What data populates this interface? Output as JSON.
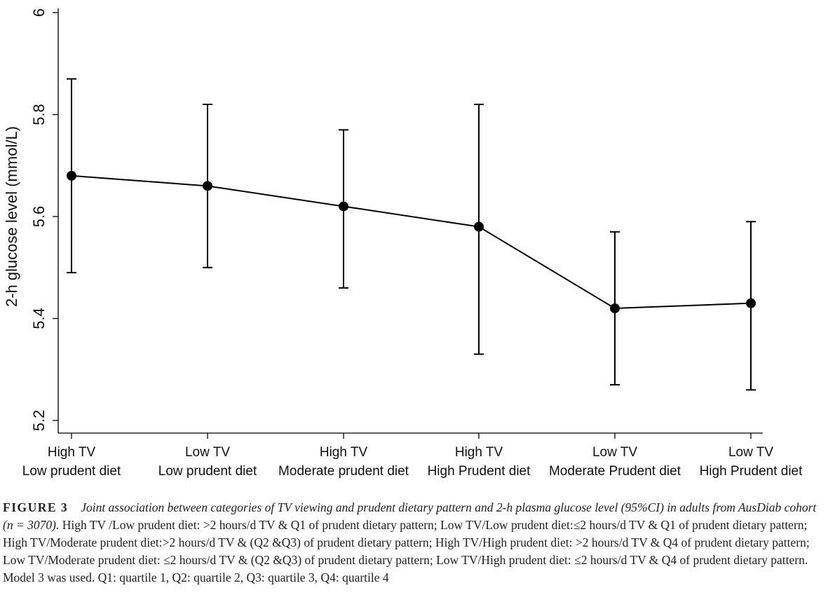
{
  "chart_data": {
    "type": "line",
    "ylabel": "2-h  glucose level (mmol/L)",
    "xlabel": "",
    "ylim": [
      5.2,
      6.0
    ],
    "yticks": [
      "5.2",
      "5.4",
      "5.6",
      "5.8",
      "6"
    ],
    "yticks_values": [
      5.2,
      5.4,
      5.6,
      5.8,
      6.0
    ],
    "categories": [
      [
        "High TV",
        "Low prudent diet"
      ],
      [
        "Low TV",
        "Low prudent diet"
      ],
      [
        "High TV",
        "Moderate prudent diet"
      ],
      [
        "High TV",
        "High Prudent diet"
      ],
      [
        "Low TV",
        "Moderate Prudent diet"
      ],
      [
        "Low TV",
        "High Prudent diet"
      ]
    ],
    "values": [
      5.68,
      5.66,
      5.62,
      5.58,
      5.42,
      5.43
    ],
    "ci_lower": [
      5.49,
      5.5,
      5.46,
      5.33,
      5.27,
      5.26
    ],
    "ci_upper": [
      5.87,
      5.82,
      5.77,
      5.82,
      5.57,
      5.59
    ],
    "grid": false,
    "color": "#000000"
  },
  "caption": {
    "label": "FIGURE 3",
    "title": "Joint association between categories of TV viewing and prudent dietary pattern and 2-h plasma glucose level (95%CI) in adults from AusDiab cohort (n = 3070).",
    "body": " High TV /Low prudent diet: >2 hours/d TV & Q1 of prudent dietary pattern; Low TV/Low prudent diet:≤2 hours/d TV & Q1 of prudent dietary pattern; High TV/Moderate prudent diet:>2 hours/d TV & (Q2 &Q3) of prudent dietary pattern; High TV/High prudent diet: >2 hours/d TV & Q4 of prudent dietary pattern; Low TV/Moderate prudent diet: ≤2 hours/d TV & (Q2 &Q3) of prudent dietary pattern; Low TV/High prudent diet: ≤2 hours/d TV & Q4 of prudent dietary pattern. Model 3 was used. Q1: quartile 1, Q2: quartile 2, Q3: quartile 3, Q4: quartile 4"
  }
}
